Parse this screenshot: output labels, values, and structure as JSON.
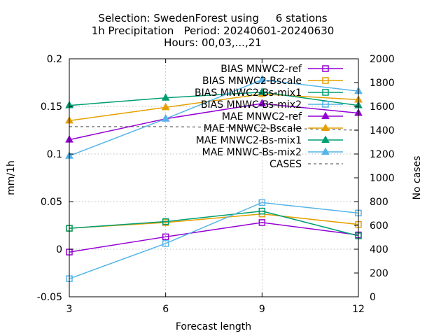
{
  "chart_data": {
    "type": "line",
    "title_lines": [
      "Selection: SwedenForest using     6 stations",
      "1h Precipitation   Period: 20240601-20240630",
      "Hours: 00,03,...,21"
    ],
    "xlabel": "Forecast length",
    "ylabel": "mm/1h",
    "y2label": "No cases",
    "x": [
      3,
      6,
      9,
      12
    ],
    "xlim": [
      3,
      12
    ],
    "ylim": [
      -0.05,
      0.2
    ],
    "y2lim": [
      0,
      2000
    ],
    "xticks": [
      "3",
      "6",
      "9",
      "12"
    ],
    "yticks": [
      "-0.05",
      "0",
      "0.05",
      "0.1",
      "0.15",
      "0.2"
    ],
    "y2ticks": [
      "0",
      "200",
      "400",
      "600",
      "800",
      "1000",
      "1200",
      "1400",
      "1600",
      "1800",
      "2000"
    ],
    "grid": true,
    "legend_position": "top-right",
    "series": [
      {
        "name": "BIAS MNWC2-ref",
        "color": "#9400d3",
        "marker": "open-square",
        "axis": "y",
        "values": [
          -0.003,
          0.013,
          0.028,
          0.015
        ]
      },
      {
        "name": "BIAS MNWC2-Bscale",
        "color": "#e69f00",
        "marker": "open-square",
        "axis": "y",
        "values": [
          0.022,
          0.028,
          0.037,
          0.026
        ]
      },
      {
        "name": "BIAS MNWC2-Bs-mix1",
        "color": "#009e73",
        "marker": "open-square",
        "axis": "y",
        "values": [
          0.022,
          0.029,
          0.04,
          0.014
        ]
      },
      {
        "name": "BIAS MNWC-Bs-mix2",
        "color": "#56b4e9",
        "marker": "open-square",
        "axis": "y",
        "values": [
          -0.031,
          0.006,
          0.049,
          0.038
        ]
      },
      {
        "name": "MAE MNWC2-ref",
        "color": "#9400d3",
        "marker": "filled-triangle",
        "axis": "y",
        "values": [
          0.115,
          0.137,
          0.153,
          0.143
        ]
      },
      {
        "name": "MAE MNWC2-Bscale",
        "color": "#e69f00",
        "marker": "filled-triangle",
        "axis": "y",
        "values": [
          0.135,
          0.149,
          0.163,
          0.157
        ]
      },
      {
        "name": "MAE MNWC2-Bs-mix1",
        "color": "#009e73",
        "marker": "filled-triangle",
        "axis": "y",
        "values": [
          0.151,
          0.159,
          0.165,
          0.151
        ]
      },
      {
        "name": "MAE MNWC-Bs-mix2",
        "color": "#56b4e9",
        "marker": "filled-triangle",
        "axis": "y",
        "values": [
          0.098,
          0.137,
          0.178,
          0.166
        ]
      },
      {
        "name": "CASES",
        "color": "#808080",
        "marker": "none",
        "dashed": true,
        "axis": "y2",
        "values": [
          1430,
          1430,
          1420,
          1400
        ]
      }
    ]
  }
}
